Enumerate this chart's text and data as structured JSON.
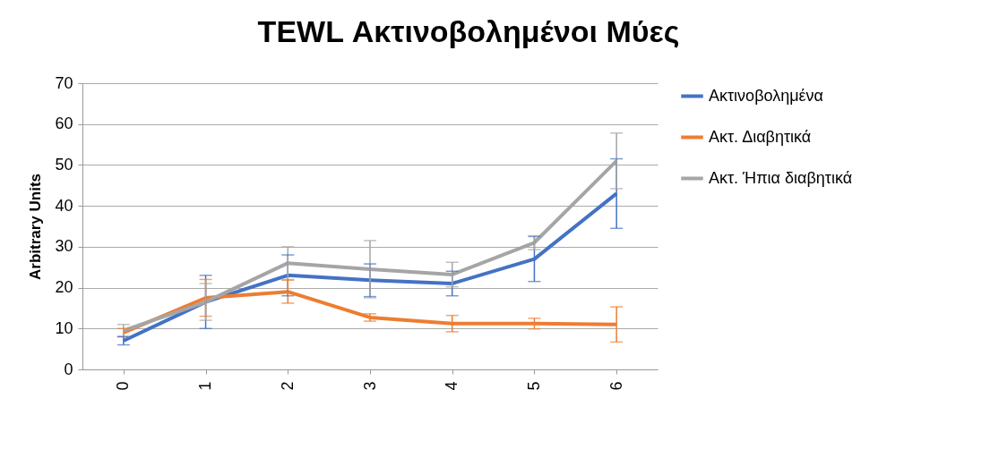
{
  "chart_data": {
    "type": "line",
    "title": "TEWL Ακτινοβολημένοι Μύες",
    "ylabel": "Arbitrary Units",
    "categories": [
      "0",
      "1",
      "2",
      "3",
      "4",
      "5",
      "6"
    ],
    "series": [
      {
        "name": "Ακτινοβολημένα",
        "color": "#4472c4",
        "values": [
          7,
          16.5,
          23,
          21.8,
          21,
          27,
          43
        ],
        "errors": [
          1,
          6.5,
          5,
          4,
          3,
          5.5,
          8.5
        ]
      },
      {
        "name": "Ακτ. Διαβητικά",
        "color": "#ed7d31",
        "values": [
          9,
          17.5,
          19,
          12.7,
          11.2,
          11.2,
          11
        ],
        "errors": [
          1,
          4.5,
          2.8,
          0.9,
          2,
          1.3,
          4.3
        ]
      },
      {
        "name": "Ακτ. Ήπια διαβητικά",
        "color": "#a5a5a5",
        "values": [
          9.5,
          16.5,
          26,
          24.5,
          23.2,
          31,
          51
        ],
        "errors": [
          1.5,
          4.5,
          4,
          7,
          3,
          1.7,
          6.8
        ]
      }
    ],
    "ylim": [
      0,
      70
    ],
    "yticks": [
      0,
      10,
      20,
      30,
      40,
      50,
      60,
      70
    ],
    "grid": "y",
    "legend": "right",
    "marker": "none",
    "line_style": "solid"
  }
}
